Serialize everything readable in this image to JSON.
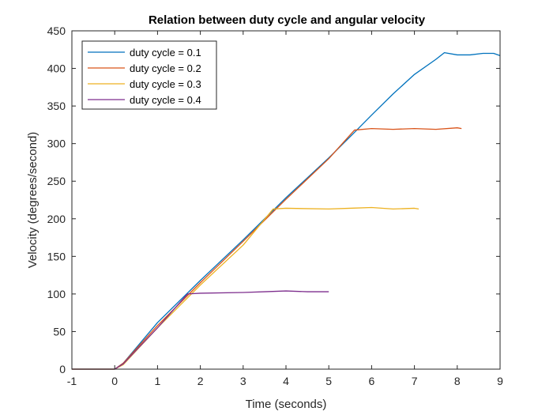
{
  "chart_data": {
    "type": "line",
    "title": "Relation between duty cycle and angular velocity",
    "xlabel": "Time (seconds)",
    "ylabel": "Velocity (degrees/second)",
    "xlim": [
      -1,
      9
    ],
    "ylim": [
      0,
      450
    ],
    "xticks": [
      -1,
      0,
      1,
      2,
      3,
      4,
      5,
      6,
      7,
      8,
      9
    ],
    "yticks": [
      0,
      50,
      100,
      150,
      200,
      250,
      300,
      350,
      400,
      450
    ],
    "grid": false,
    "legend_position": "top-left",
    "series": [
      {
        "name": "duty cycle = 0.1",
        "color": "#0072BD",
        "x": [
          -1,
          0,
          0.2,
          1,
          2,
          3,
          4,
          5,
          5.6,
          6,
          6.5,
          7,
          7.5,
          7.7,
          8,
          8.3,
          8.6,
          8.85,
          9
        ],
        "y": [
          0,
          0,
          8,
          62,
          118,
          172,
          228,
          281,
          315,
          338,
          366,
          392,
          412,
          421,
          418,
          418,
          420,
          420,
          417
        ]
      },
      {
        "name": "duty cycle = 0.2",
        "color": "#D95319",
        "x": [
          -1,
          0,
          0.2,
          1,
          2,
          3,
          4,
          5,
          5.6,
          6,
          6.5,
          7,
          7.5,
          8,
          8.1
        ],
        "y": [
          0,
          0,
          8,
          58,
          115,
          170,
          226,
          280,
          318,
          320,
          319,
          320,
          319,
          321,
          320
        ]
      },
      {
        "name": "duty cycle = 0.3",
        "color": "#EDB120",
        "x": [
          -1,
          0,
          0.2,
          1,
          2,
          3,
          3.7,
          4,
          5,
          5.5,
          6,
          6.5,
          7,
          7.1
        ],
        "y": [
          0,
          0,
          6,
          55,
          112,
          165,
          213,
          214,
          213,
          214,
          215,
          213,
          214,
          213
        ]
      },
      {
        "name": "duty cycle = 0.4",
        "color": "#7E2F8E",
        "x": [
          -1,
          0,
          0.2,
          1,
          1.7,
          2,
          3,
          3.5,
          4,
          4.5,
          5
        ],
        "y": [
          0,
          0,
          7,
          55,
          100,
          101,
          102,
          103,
          104,
          103,
          103
        ]
      }
    ]
  }
}
